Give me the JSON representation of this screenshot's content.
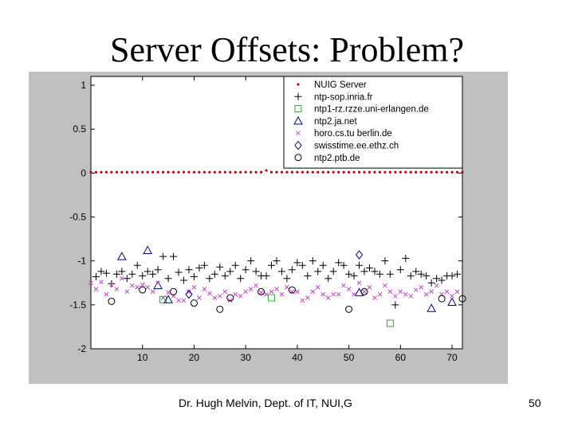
{
  "slide": {
    "title": "Server Offsets: Problem?",
    "footer": "Dr. Hugh Melvin, Dept. of IT, NUI,G",
    "page_number": "50"
  },
  "chart_data": {
    "type": "scatter",
    "title": "",
    "xlabel": "",
    "ylabel": "",
    "xlim": [
      0,
      72
    ],
    "ylim": [
      -2,
      1.1
    ],
    "xticks": [
      10,
      20,
      30,
      40,
      50,
      60,
      70
    ],
    "yticks": [
      1,
      0.5,
      0,
      -0.5,
      -1,
      -1.5,
      -2
    ],
    "legend_position": "top-right",
    "series": [
      {
        "name": "NUIG Server",
        "marker": "dot",
        "color": "#cc0000",
        "x": [
          0,
          1,
          2,
          3,
          4,
          5,
          6,
          7,
          8,
          9,
          10,
          11,
          12,
          13,
          14,
          15,
          16,
          17,
          18,
          19,
          20,
          21,
          22,
          23,
          24,
          25,
          26,
          27,
          28,
          29,
          30,
          31,
          32,
          33,
          34,
          35,
          36,
          37,
          38,
          39,
          40,
          41,
          42,
          43,
          44,
          45,
          46,
          47,
          48,
          49,
          50,
          51,
          52,
          53,
          54,
          55,
          56,
          57,
          58,
          59,
          60,
          61,
          62,
          63,
          64,
          65,
          66,
          67,
          68,
          69,
          70,
          71,
          72
        ],
        "y": [
          0.01,
          0.01,
          0.01,
          0.01,
          0.01,
          0.01,
          0.01,
          0.01,
          0.01,
          0.01,
          0.01,
          0.01,
          0.01,
          0.01,
          0.01,
          0.01,
          0.01,
          0.01,
          0.01,
          0.01,
          0.01,
          0.01,
          0.01,
          0.01,
          0.01,
          0.01,
          0.01,
          0.01,
          0.01,
          0.01,
          0.01,
          0.01,
          0.01,
          0.01,
          0.03,
          0.01,
          0.01,
          0.01,
          0.01,
          0.01,
          0.01,
          0.01,
          0.01,
          0.01,
          0.01,
          0.01,
          0.01,
          0.01,
          0.01,
          0.01,
          0.01,
          0.01,
          0.01,
          0.01,
          0.01,
          0.01,
          0.01,
          0.01,
          0.01,
          0.01,
          0.01,
          0.01,
          0.01,
          0.01,
          0.01,
          0.01,
          0.01,
          0.01,
          0.01,
          0.01,
          0.01,
          0.01,
          0.01
        ]
      },
      {
        "name": "ntp-sop.inria.fr",
        "marker": "plus",
        "color": "#000000",
        "x": [
          1,
          2,
          3,
          4,
          5,
          6,
          7,
          8,
          9,
          10,
          11,
          12,
          13,
          14,
          15,
          16,
          17,
          18,
          19,
          20,
          21,
          22,
          23,
          24,
          25,
          26,
          27,
          28,
          29,
          30,
          31,
          32,
          33,
          34,
          35,
          36,
          37,
          38,
          39,
          40,
          41,
          42,
          43,
          44,
          45,
          46,
          47,
          48,
          49,
          50,
          51,
          52,
          53,
          54,
          55,
          56,
          57,
          58,
          59,
          60,
          61,
          62,
          63,
          64,
          65,
          66,
          67,
          68,
          69,
          70,
          71
        ],
        "y": [
          -1.18,
          -1.12,
          -1.14,
          -1.26,
          -1.15,
          -1.12,
          -1.2,
          -1.15,
          -1.05,
          -1.17,
          -1.12,
          -1.15,
          -1.1,
          -0.95,
          -1.2,
          -0.95,
          -1.13,
          -1.22,
          -1.1,
          -1.18,
          -1.08,
          -1.05,
          -1.2,
          -1.15,
          -1.07,
          -1.17,
          -1.12,
          -1.05,
          -1.2,
          -1.1,
          -1.0,
          -1.12,
          -1.17,
          -1.17,
          -1.05,
          -1.0,
          -1.12,
          -1.2,
          -1.1,
          -1.02,
          -1.05,
          -1.17,
          -1.0,
          -1.12,
          -1.05,
          -1.2,
          -1.12,
          -1.02,
          -1.05,
          -1.15,
          -1.17,
          -1.05,
          -1.12,
          -1.08,
          -1.12,
          -1.15,
          -1.0,
          -1.15,
          -1.5,
          -1.1,
          -0.97,
          -1.17,
          -1.12,
          -1.15,
          -1.17,
          -1.25,
          -1.2,
          -1.22,
          -1.17,
          -1.17,
          -1.15
        ]
      },
      {
        "name": "ntp1-rz.rzze.uni-erlangen.de",
        "marker": "square",
        "color": "#33aa33",
        "x": [
          14,
          35,
          58
        ],
        "y": [
          -1.44,
          -1.42,
          -1.71
        ]
      },
      {
        "name": "ntp2.ja.net",
        "marker": "triangle",
        "color": "#000080",
        "x": [
          6,
          11,
          13,
          15,
          52,
          66,
          70
        ],
        "y": [
          -0.95,
          -0.88,
          -1.28,
          -1.44,
          -1.36,
          -1.54,
          -1.47
        ]
      },
      {
        "name": "horo.cs.tu berlin.de",
        "marker": "x",
        "color": "#cc44cc",
        "x": [
          0,
          1,
          2,
          3,
          4,
          5,
          6,
          7,
          8,
          9,
          10,
          11,
          12,
          13,
          14,
          15,
          16,
          17,
          18,
          19,
          20,
          21,
          22,
          23,
          24,
          25,
          26,
          27,
          28,
          29,
          30,
          31,
          32,
          33,
          34,
          35,
          36,
          37,
          38,
          39,
          40,
          41,
          42,
          43,
          44,
          45,
          46,
          47,
          48,
          49,
          50,
          51,
          52,
          53,
          54,
          55,
          56,
          57,
          58,
          59,
          60,
          61,
          62,
          63,
          64,
          65,
          66,
          67,
          68,
          69,
          70,
          71
        ],
        "y": [
          -1.25,
          -1.32,
          -1.24,
          -1.38,
          -1.27,
          -1.32,
          -1.2,
          -1.35,
          -1.28,
          -1.3,
          -1.27,
          -1.3,
          -1.35,
          -1.25,
          -1.42,
          -1.36,
          -1.4,
          -1.45,
          -1.45,
          -1.35,
          -1.3,
          -1.42,
          -1.32,
          -1.37,
          -1.42,
          -1.4,
          -1.35,
          -1.45,
          -1.38,
          -1.4,
          -1.35,
          -1.32,
          -1.28,
          -1.36,
          -1.38,
          -1.35,
          -1.32,
          -1.38,
          -1.3,
          -1.35,
          -1.35,
          -1.45,
          -1.42,
          -1.35,
          -1.3,
          -1.38,
          -1.42,
          -1.38,
          -1.38,
          -1.28,
          -1.32,
          -1.38,
          -1.25,
          -1.35,
          -1.3,
          -1.42,
          -1.38,
          -1.28,
          -1.35,
          -1.4,
          -1.35,
          -1.38,
          -1.4,
          -1.33,
          -1.3,
          -1.38,
          -1.35,
          -1.28,
          -1.38,
          -1.35,
          -1.4,
          -1.35
        ]
      },
      {
        "name": "swisstime.ee.ethz.ch",
        "marker": "diamond",
        "color": "#000080",
        "x": [
          19,
          52
        ],
        "y": [
          -1.38,
          -0.93
        ]
      },
      {
        "name": "ntp2.ptb.de",
        "marker": "circle",
        "color": "#000000",
        "x": [
          4,
          10,
          16,
          20,
          25,
          27,
          33,
          39,
          50,
          53,
          68,
          72
        ],
        "y": [
          -1.46,
          -1.33,
          -1.35,
          -1.48,
          -1.55,
          -1.42,
          -1.35,
          -1.33,
          -1.55,
          -1.35,
          -1.43,
          -1.43
        ]
      }
    ]
  }
}
